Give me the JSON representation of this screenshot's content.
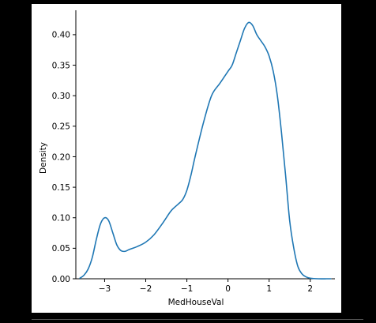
{
  "chart_data": {
    "type": "line",
    "xlabel": "MedHouseVal",
    "ylabel": "Density",
    "xlim": [
      -3.7,
      2.6
    ],
    "ylim": [
      0.0,
      0.44
    ],
    "grid": false,
    "line_color": "#1f77b4",
    "x_ticks": [
      {
        "value": -3,
        "label": "−3"
      },
      {
        "value": -2,
        "label": "−2"
      },
      {
        "value": -1,
        "label": "−1"
      },
      {
        "value": 0,
        "label": "0"
      },
      {
        "value": 1,
        "label": "1"
      },
      {
        "value": 2,
        "label": "2"
      }
    ],
    "y_ticks": [
      {
        "value": 0.0,
        "label": "0.00"
      },
      {
        "value": 0.05,
        "label": "0.05"
      },
      {
        "value": 0.1,
        "label": "0.10"
      },
      {
        "value": 0.15,
        "label": "0.15"
      },
      {
        "value": 0.2,
        "label": "0.20"
      },
      {
        "value": 0.25,
        "label": "0.25"
      },
      {
        "value": 0.3,
        "label": "0.30"
      },
      {
        "value": 0.35,
        "label": "0.35"
      },
      {
        "value": 0.4,
        "label": "0.40"
      }
    ],
    "series": [
      {
        "x": [
          -3.6,
          -3.5,
          -3.4,
          -3.3,
          -3.2,
          -3.1,
          -3.0,
          -2.9,
          -2.8,
          -2.7,
          -2.6,
          -2.5,
          -2.4,
          -2.2,
          -2.0,
          -1.8,
          -1.6,
          -1.4,
          -1.3,
          -1.2,
          -1.1,
          -1.0,
          -0.9,
          -0.8,
          -0.6,
          -0.4,
          -0.2,
          0.0,
          0.1,
          0.2,
          0.3,
          0.4,
          0.5,
          0.6,
          0.7,
          0.8,
          0.9,
          1.0,
          1.1,
          1.2,
          1.3,
          1.4,
          1.5,
          1.6,
          1.7,
          1.8,
          1.9,
          2.0,
          2.2,
          2.4,
          2.5
        ],
        "y": [
          0.001,
          0.006,
          0.016,
          0.035,
          0.065,
          0.09,
          0.1,
          0.095,
          0.075,
          0.055,
          0.046,
          0.045,
          0.048,
          0.053,
          0.06,
          0.072,
          0.09,
          0.11,
          0.117,
          0.123,
          0.13,
          0.145,
          0.17,
          0.2,
          0.255,
          0.3,
          0.32,
          0.34,
          0.35,
          0.37,
          0.39,
          0.41,
          0.42,
          0.415,
          0.4,
          0.39,
          0.38,
          0.365,
          0.34,
          0.3,
          0.24,
          0.17,
          0.095,
          0.05,
          0.02,
          0.008,
          0.003,
          0.001,
          0.0,
          0.0,
          0.0
        ]
      }
    ]
  }
}
